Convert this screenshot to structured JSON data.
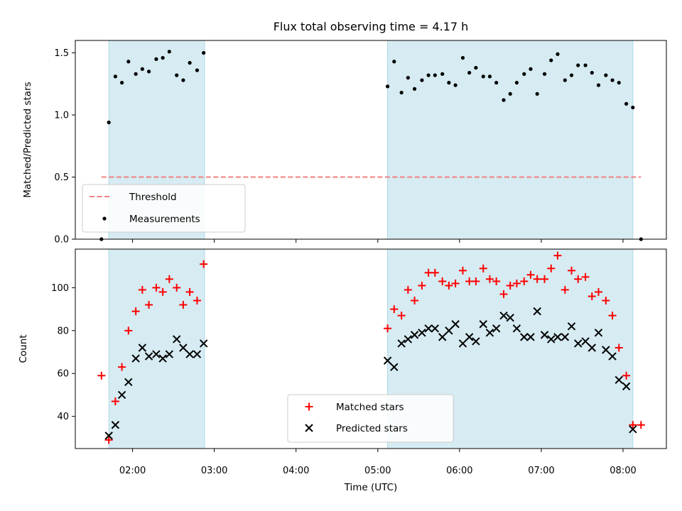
{
  "chart_data": {
    "title": "Flux total observing time = 4.17 h",
    "xlabel": "Time (UTC)",
    "x_unit": "hours UTC",
    "x_ticks": [
      {
        "label": "02:00",
        "value": 2
      },
      {
        "label": "03:00",
        "value": 3
      },
      {
        "label": "04:00",
        "value": 4
      },
      {
        "label": "05:00",
        "value": 5
      },
      {
        "label": "06:00",
        "value": 6
      },
      {
        "label": "07:00",
        "value": 7
      },
      {
        "label": "08:00",
        "value": 8
      }
    ],
    "xlim": [
      1.3,
      8.53
    ],
    "shaded_intervals": [
      [
        1.71,
        2.88
      ],
      [
        5.12,
        8.12
      ]
    ],
    "shade_color": "#add8e6",
    "panels": [
      {
        "type": "scatter",
        "ylabel": "Matched/Predicted stars",
        "ylim": [
          0,
          1.6
        ],
        "y_ticks": [
          "0.0",
          "0.5",
          "1.0",
          "1.5"
        ],
        "legend_position": "lower-left",
        "threshold": {
          "name": "Threshold",
          "value": 0.5,
          "x_range": [
            1.62,
            8.22
          ],
          "color": "#f08080",
          "style": "dashed"
        },
        "series": [
          {
            "name": "Measurements",
            "color": "#000000",
            "marker": "dot",
            "x": [
              1.62,
              1.71,
              1.79,
              1.87,
              1.95,
              2.04,
              2.12,
              2.2,
              2.29,
              2.37,
              2.45,
              2.54,
              2.62,
              2.7,
              2.79,
              2.87,
              5.12,
              5.2,
              5.29,
              5.37,
              5.45,
              5.54,
              5.62,
              5.7,
              5.79,
              5.87,
              5.95,
              6.04,
              6.12,
              6.2,
              6.29,
              6.37,
              6.45,
              6.54,
              6.62,
              6.7,
              6.79,
              6.87,
              6.95,
              7.04,
              7.12,
              7.2,
              7.29,
              7.37,
              7.45,
              7.54,
              7.62,
              7.7,
              7.79,
              7.87,
              7.95,
              8.04,
              8.12,
              8.22
            ],
            "y": [
              0.0,
              0.94,
              1.31,
              1.26,
              1.43,
              1.33,
              1.37,
              1.35,
              1.45,
              1.46,
              1.51,
              1.32,
              1.28,
              1.42,
              1.36,
              1.5,
              1.23,
              1.43,
              1.18,
              1.3,
              1.21,
              1.28,
              1.32,
              1.32,
              1.33,
              1.26,
              1.24,
              1.46,
              1.34,
              1.38,
              1.31,
              1.31,
              1.26,
              1.12,
              1.17,
              1.26,
              1.33,
              1.37,
              1.17,
              1.33,
              1.44,
              1.49,
              1.28,
              1.32,
              1.4,
              1.4,
              1.34,
              1.24,
              1.32,
              1.28,
              1.26,
              1.09,
              1.06,
              0.0
            ]
          }
        ]
      },
      {
        "type": "scatter",
        "ylabel": "Count",
        "ylim": [
          25,
          118
        ],
        "y_ticks": [
          "40",
          "60",
          "80",
          "100"
        ],
        "legend_position": "lower-center",
        "series": [
          {
            "name": "Matched stars",
            "color": "#ff0000",
            "marker": "plus",
            "x": [
              1.62,
              1.71,
              1.79,
              1.87,
              1.95,
              2.04,
              2.12,
              2.2,
              2.29,
              2.37,
              2.45,
              2.54,
              2.62,
              2.7,
              2.79,
              2.87,
              5.12,
              5.2,
              5.29,
              5.37,
              5.45,
              5.54,
              5.62,
              5.7,
              5.79,
              5.87,
              5.95,
              6.04,
              6.12,
              6.2,
              6.29,
              6.37,
              6.45,
              6.54,
              6.62,
              6.7,
              6.79,
              6.87,
              6.95,
              7.04,
              7.12,
              7.2,
              7.29,
              7.37,
              7.45,
              7.54,
              7.62,
              7.7,
              7.79,
              7.87,
              7.95,
              8.04,
              8.12,
              8.22
            ],
            "y": [
              59,
              29,
              47,
              63,
              80,
              89,
              99,
              92,
              100,
              98,
              104,
              100,
              92,
              98,
              94,
              111,
              81,
              90,
              87,
              99,
              94,
              101,
              107,
              107,
              103,
              101,
              102,
              108,
              103,
              103,
              109,
              104,
              103,
              97,
              101,
              102,
              103,
              106,
              104,
              104,
              109,
              115,
              99,
              108,
              104,
              105,
              96,
              98,
              94,
              87,
              72,
              59,
              36,
              36
            ]
          },
          {
            "name": "Predicted stars",
            "color": "#000000",
            "marker": "x",
            "x": [
              1.71,
              1.79,
              1.87,
              1.95,
              2.04,
              2.12,
              2.2,
              2.29,
              2.37,
              2.45,
              2.54,
              2.62,
              2.7,
              2.79,
              2.87,
              5.12,
              5.2,
              5.29,
              5.37,
              5.45,
              5.54,
              5.62,
              5.7,
              5.79,
              5.87,
              5.95,
              6.04,
              6.12,
              6.2,
              6.29,
              6.37,
              6.45,
              6.54,
              6.62,
              6.7,
              6.79,
              6.87,
              6.95,
              7.04,
              7.12,
              7.2,
              7.29,
              7.37,
              7.45,
              7.54,
              7.62,
              7.7,
              7.79,
              7.87,
              7.95,
              8.04,
              8.12
            ],
            "y": [
              31,
              36,
              50,
              56,
              67,
              72,
              68,
              69,
              67,
              69,
              76,
              72,
              69,
              69,
              74,
              66,
              63,
              74,
              76,
              78,
              79,
              81,
              81,
              77,
              80,
              83,
              74,
              77,
              75,
              83,
              79,
              81,
              87,
              86,
              81,
              77,
              77,
              89,
              78,
              76,
              77,
              77,
              82,
              74,
              75,
              72,
              79,
              71,
              68,
              57,
              54,
              34
            ]
          }
        ]
      }
    ]
  }
}
